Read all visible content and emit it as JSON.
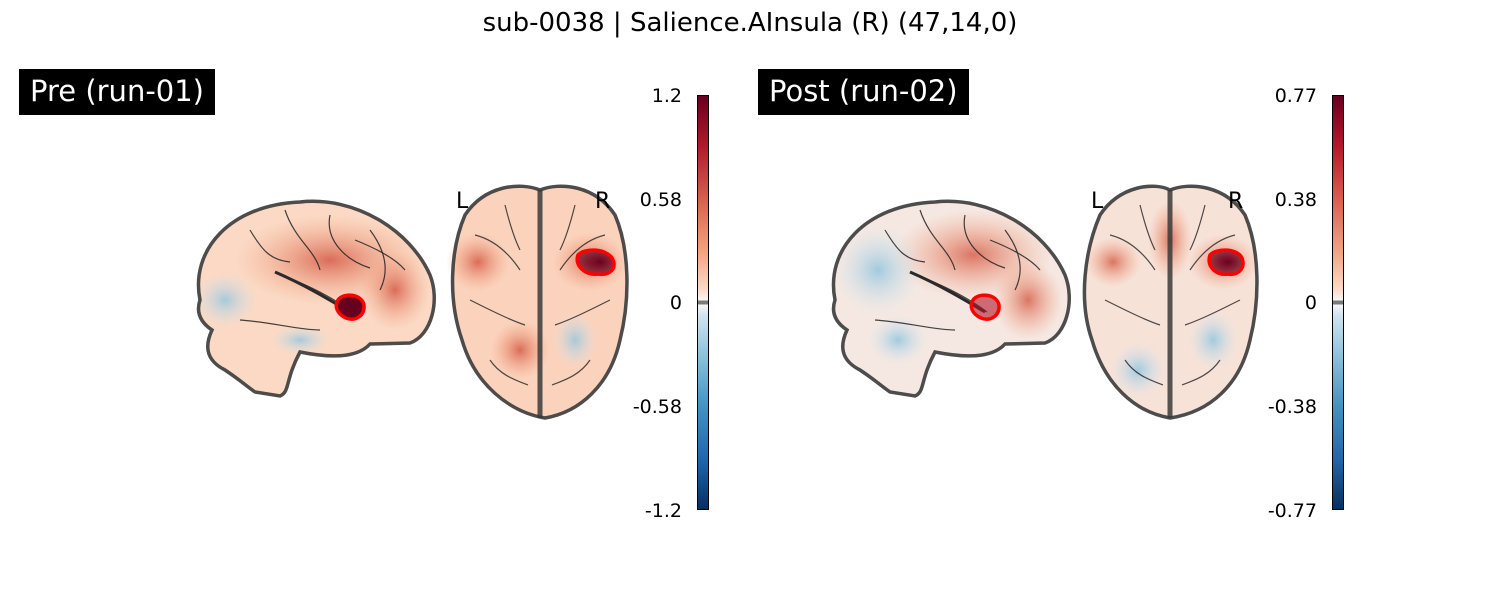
{
  "figure_title": "sub-0038 | Salience.AInsula (R) (47,14,0)",
  "panels": [
    {
      "label": "Pre (run-01)",
      "orientation_left": "L",
      "orientation_right": "R",
      "colorbar_ticks": [
        "1.2",
        "0.58",
        "0",
        "-0.58",
        "-1.2"
      ],
      "colormap": "RdBu_r",
      "roi_outline_color": "#ff0000"
    },
    {
      "label": "Post (run-02)",
      "orientation_left": "L",
      "orientation_right": "R",
      "colorbar_ticks": [
        "0.77",
        "0.38",
        "0",
        "-0.38",
        "-0.77"
      ],
      "colormap": "RdBu_r",
      "roi_outline_color": "#ff0000"
    }
  ]
}
